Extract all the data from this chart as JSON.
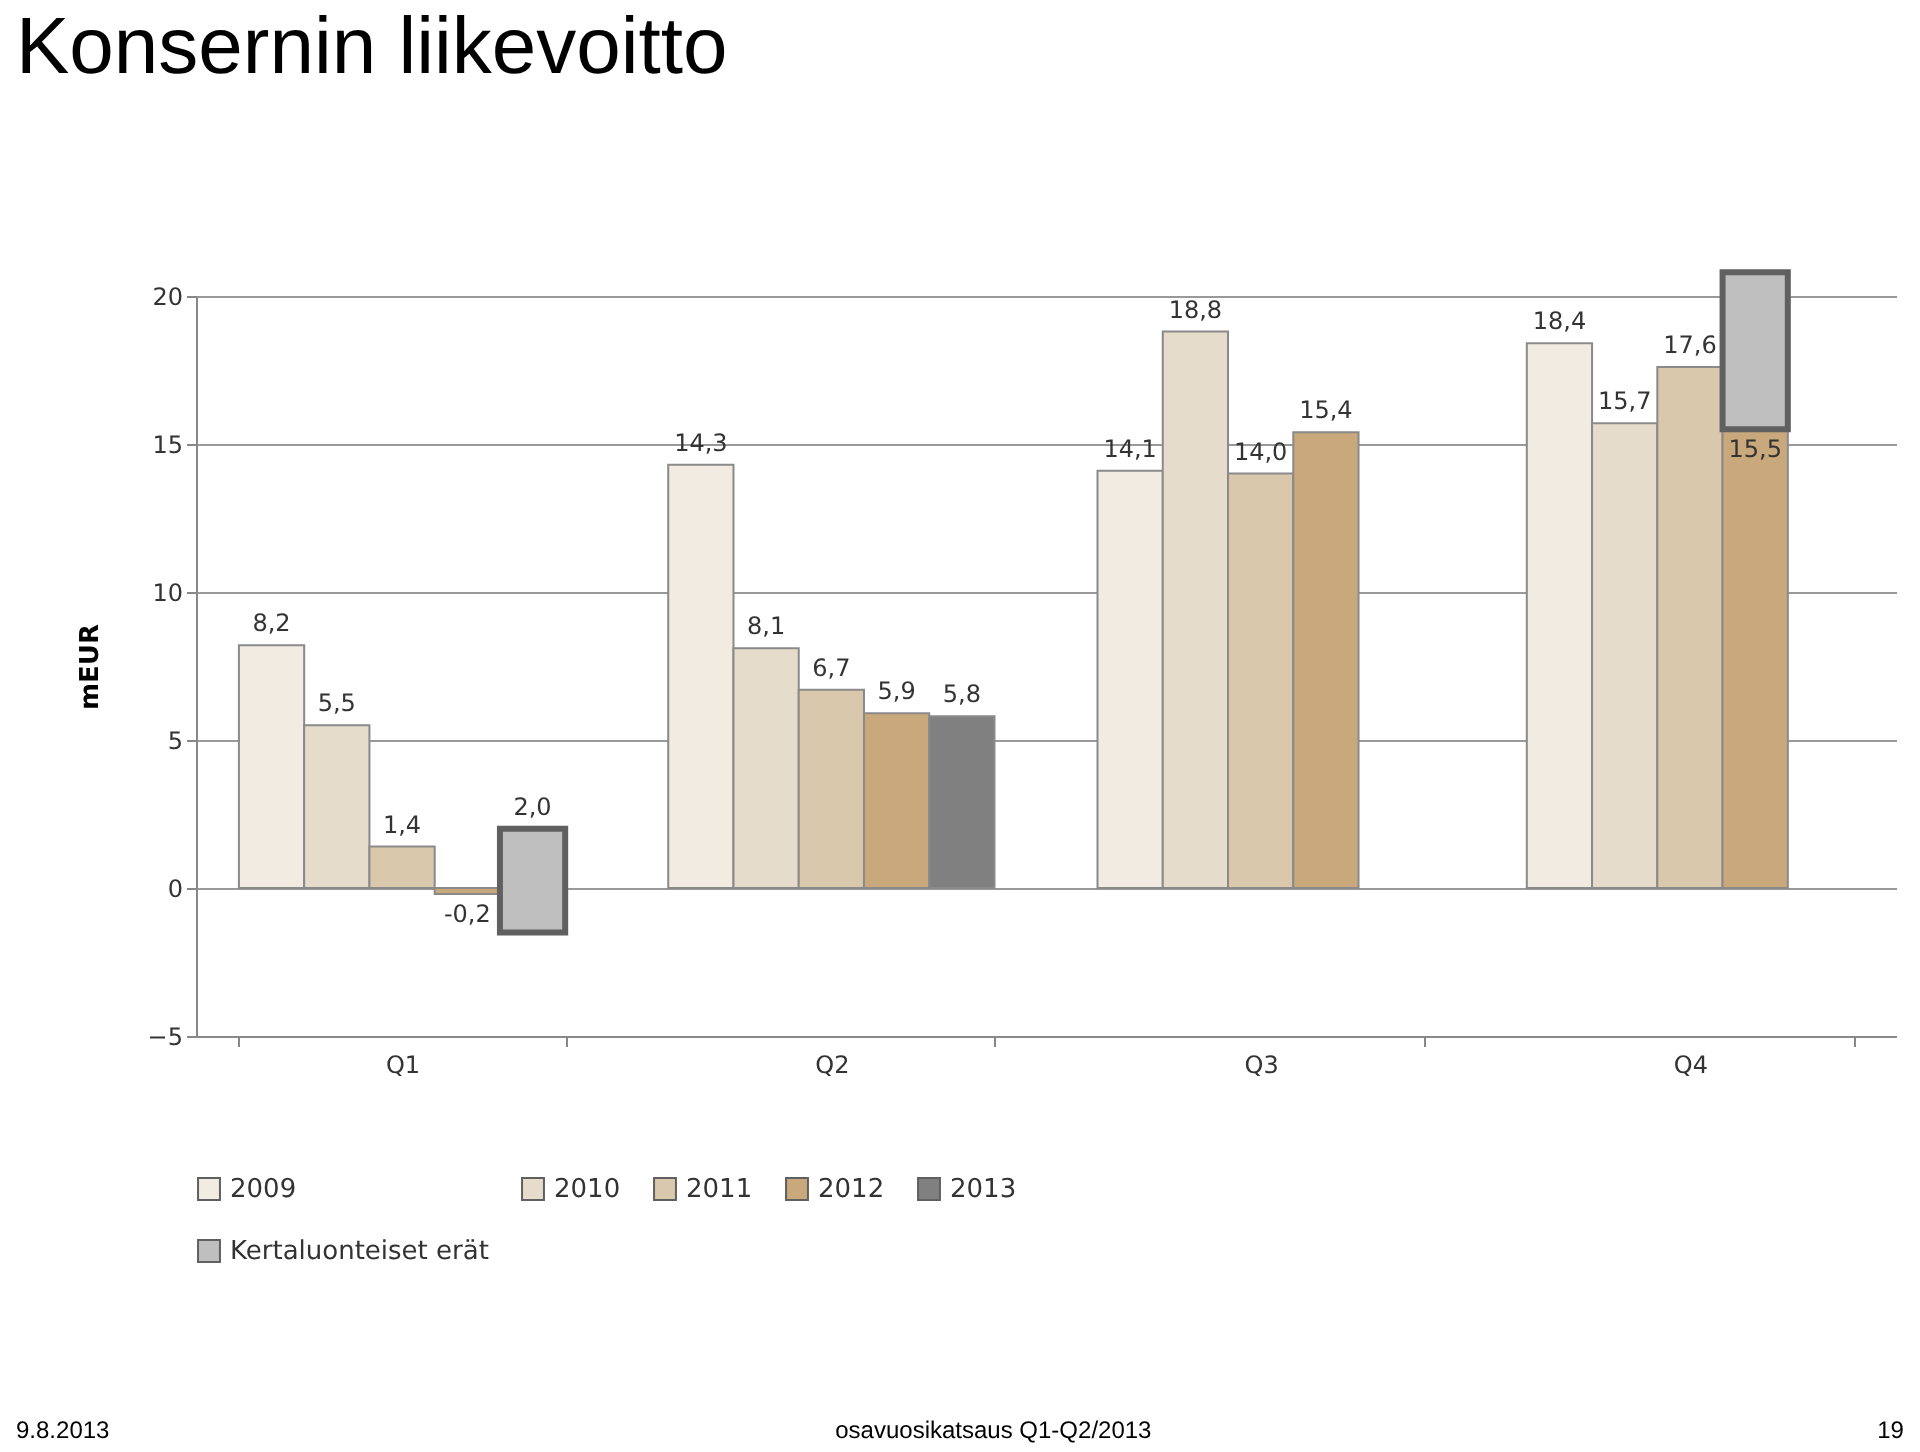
{
  "chart_data": {
    "type": "bar",
    "title": "Konsernin liikevoitto",
    "ylabel": "mEUR",
    "categories": [
      "Q1",
      "Q2",
      "Q3",
      "Q4"
    ],
    "ylim": [
      -5,
      20
    ],
    "yticks": [
      -5,
      0,
      5,
      10,
      15,
      20
    ],
    "grid": "y",
    "legend": "bottom",
    "series": [
      {
        "name": "2009",
        "color": "#f2ebe1",
        "values": [
          8.2,
          14.3,
          14.1,
          18.4
        ],
        "value_labels": [
          "8,2",
          "14,3",
          "14,1",
          "18,4"
        ]
      },
      {
        "name": "2010",
        "color": "#e6dccb",
        "values": [
          5.5,
          8.1,
          18.8,
          15.7
        ],
        "value_labels": [
          "5,5",
          "8,1",
          "18,8",
          "15,7"
        ]
      },
      {
        "name": "2011",
        "color": "#dac8ad",
        "values": [
          1.4,
          6.7,
          14.0,
          17.6
        ],
        "value_labels": [
          "1,4",
          "6,7",
          "14,0",
          "17,6"
        ]
      },
      {
        "name": "2012",
        "color": "#c9a97c",
        "values": [
          -0.2,
          5.9,
          15.4,
          15.5
        ],
        "value_labels": [
          "-0,2",
          "5,9",
          "15,4",
          "15,5"
        ]
      },
      {
        "name": "2013",
        "color": "#808080",
        "values": [
          null,
          5.8,
          null,
          null
        ],
        "value_labels": [
          null,
          "5,8",
          null,
          null
        ]
      },
      {
        "name": "Kertaluonteiset erät",
        "color": "#bfbfbf",
        "values": [
          3.5,
          null,
          null,
          5.3
        ],
        "base": [
          -1.5,
          null,
          null,
          15.5
        ]
      }
    ],
    "annotations": [
      "2,0",
      "9.8.2013",
      "osavuosikatsaus Q1-Q2/2013",
      "19"
    ]
  }
}
